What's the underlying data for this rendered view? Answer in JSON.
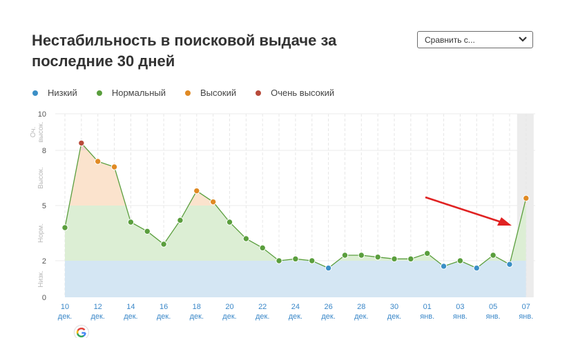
{
  "title": "Нестабильность в поисковой выдаче за последние 30 дней",
  "compare_select": {
    "label": "Сравнить с..."
  },
  "colors": {
    "low": "#3b8fc6",
    "normal": "#5a9e3d",
    "high": "#e08a24",
    "very_high": "#b84a3a",
    "arrow": "#e02222"
  },
  "legend": [
    {
      "label": "Низкий",
      "color": "#3b8fc6"
    },
    {
      "label": "Нормальный",
      "color": "#5a9e3d"
    },
    {
      "label": "Высокий",
      "color": "#e08a24"
    },
    {
      "label": "Очень высокий",
      "color": "#b84a3a"
    }
  ],
  "chart_data": {
    "type": "area",
    "y_ticks": [
      "0",
      "2",
      "5",
      "8",
      "10"
    ],
    "ylim": [
      0,
      10
    ],
    "zones": [
      {
        "label": "Низк.",
        "from": 0,
        "to": 2
      },
      {
        "label": "Норм.",
        "from": 2,
        "to": 5
      },
      {
        "label": "Высок.",
        "from": 5,
        "to": 8
      },
      {
        "label": "Оч. высок.",
        "from": 8,
        "to": 10
      }
    ],
    "x_ticks": [
      {
        "day": "10",
        "month": "дек."
      },
      {
        "day": "12",
        "month": "дек."
      },
      {
        "day": "14",
        "month": "дек."
      },
      {
        "day": "16",
        "month": "дек."
      },
      {
        "day": "18",
        "month": "дек."
      },
      {
        "day": "20",
        "month": "дек."
      },
      {
        "day": "22",
        "month": "дек."
      },
      {
        "day": "24",
        "month": "дек."
      },
      {
        "day": "26",
        "month": "дек."
      },
      {
        "day": "28",
        "month": "дек."
      },
      {
        "day": "30",
        "month": "дек."
      },
      {
        "day": "01",
        "month": "янв."
      },
      {
        "day": "03",
        "month": "янв."
      },
      {
        "day": "05",
        "month": "янв."
      },
      {
        "day": "07",
        "month": "янв."
      }
    ],
    "dates": [
      "10 дек.",
      "11 дек.",
      "12 дек.",
      "13 дек.",
      "14 дек.",
      "15 дек.",
      "16 дек.",
      "17 дек.",
      "18 дек.",
      "19 дек.",
      "20 дек.",
      "21 дек.",
      "22 дек.",
      "23 дек.",
      "24 дек.",
      "25 дек.",
      "26 дек.",
      "27 дек.",
      "28 дек.",
      "29 дек.",
      "30 дек.",
      "31 дек.",
      "01 янв.",
      "02 янв.",
      "03 янв.",
      "04 янв.",
      "05 янв.",
      "06 янв.",
      "07 янв."
    ],
    "values": [
      3.8,
      8.4,
      7.4,
      7.1,
      4.1,
      3.6,
      2.9,
      4.2,
      5.8,
      5.2,
      4.1,
      3.2,
      2.7,
      2.0,
      2.1,
      2.0,
      1.6,
      2.3,
      2.3,
      2.2,
      2.1,
      2.1,
      2.4,
      1.7,
      2.0,
      1.6,
      2.3,
      1.8,
      5.4
    ],
    "levels": [
      "normal",
      "very_high",
      "high",
      "high",
      "normal",
      "normal",
      "normal",
      "normal",
      "high",
      "high",
      "normal",
      "normal",
      "normal",
      "normal",
      "normal",
      "normal",
      "low",
      "normal",
      "normal",
      "normal",
      "normal",
      "normal",
      "normal",
      "low",
      "normal",
      "low",
      "normal",
      "low",
      "high"
    ],
    "highlight_last_day": true,
    "annotation": {
      "type": "arrow",
      "target": "07 янв."
    },
    "event_marker": {
      "icon": "google-icon",
      "date": "11 дек."
    }
  }
}
